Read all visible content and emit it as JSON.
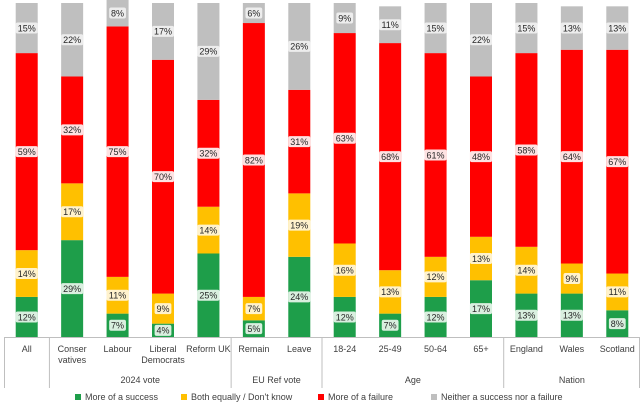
{
  "chart_data": {
    "type": "bar",
    "stacked": true,
    "ylim": [
      0,
      100
    ],
    "grid": false,
    "legend_position": "bottom",
    "categories": [
      "All",
      "Conser vatives",
      "Labour",
      "Liberal Democrats",
      "Reform UK",
      "Remain",
      "Leave",
      "18-24",
      "25-49",
      "50-64",
      "65+",
      "England",
      "Wales",
      "Scotland"
    ],
    "category_lines": [
      [
        "All"
      ],
      [
        "Conser",
        "vatives"
      ],
      [
        "Labour"
      ],
      [
        "Liberal",
        "Democrats"
      ],
      [
        "Reform UK"
      ],
      [
        "Remain"
      ],
      [
        "Leave"
      ],
      [
        "18-24"
      ],
      [
        "25-49"
      ],
      [
        "50-64"
      ],
      [
        "65+"
      ],
      [
        "England"
      ],
      [
        "Wales"
      ],
      [
        "Scotland"
      ]
    ],
    "groups": [
      {
        "label": "",
        "start": 0,
        "end": 0
      },
      {
        "label": "2024 vote",
        "start": 1,
        "end": 4
      },
      {
        "label": "EU Ref vote",
        "start": 5,
        "end": 6
      },
      {
        "label": "Age",
        "start": 7,
        "end": 10
      },
      {
        "label": "Nation",
        "start": 11,
        "end": 13
      }
    ],
    "series": [
      {
        "name": "More of a success",
        "color": "#1e9e4a",
        "label_bg": "#d9efdf",
        "values": [
          12,
          29,
          7,
          4,
          25,
          5,
          24,
          12,
          7,
          12,
          17,
          13,
          13,
          8
        ]
      },
      {
        "name": "Both equally / Don't know",
        "color": "#ffc000",
        "label_bg": "#fff2cc",
        "values": [
          14,
          17,
          11,
          9,
          14,
          7,
          19,
          16,
          13,
          12,
          13,
          14,
          9,
          11
        ]
      },
      {
        "name": "More of a failure",
        "color": "#ff0000",
        "label_bg": "#fde2e2",
        "values": [
          59,
          32,
          75,
          70,
          32,
          82,
          31,
          63,
          68,
          61,
          48,
          58,
          64,
          67
        ]
      },
      {
        "name": "Neither a success nor a failure",
        "color": "#bfbfbf",
        "label_bg": "#ededed",
        "values": [
          15,
          22,
          8,
          17,
          29,
          6,
          26,
          9,
          11,
          15,
          22,
          15,
          13,
          13
        ]
      }
    ],
    "label_suffix": "%"
  }
}
